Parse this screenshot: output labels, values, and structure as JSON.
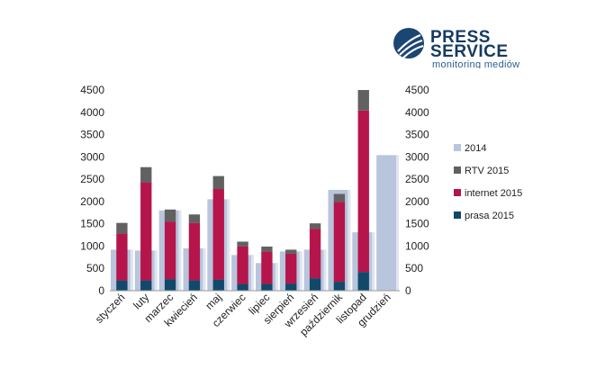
{
  "logo": {
    "line1": "PRESS",
    "line2": "SERVICE",
    "tagline": "monitoring mediów",
    "mark_color": "#1b4573"
  },
  "chart_data": {
    "type": "bar",
    "categories": [
      "styczeń",
      "luty",
      "marzec",
      "kwiecień",
      "maj",
      "czerwiec",
      "lipiec",
      "sierpień",
      "wrzesień",
      "październik",
      "listopad",
      "grudzień"
    ],
    "series": [
      {
        "name": "2014",
        "color": "#b8c5dc",
        "values": [
          920,
          900,
          1800,
          950,
          2050,
          800,
          620,
          880,
          920,
          2260,
          1310,
          3040
        ]
      },
      {
        "name": "RTV 2015",
        "color": "#616161",
        "values": [
          240,
          340,
          270,
          190,
          290,
          110,
          110,
          90,
          120,
          180,
          460,
          null
        ],
        "stacked": true
      },
      {
        "name": "internet 2015",
        "color": "#b5154b",
        "values": [
          1050,
          2200,
          1290,
          1290,
          2030,
          840,
          730,
          670,
          1110,
          1790,
          3620,
          null
        ],
        "stacked": true
      },
      {
        "name": "prasa 2015",
        "color": "#11496a",
        "values": [
          230,
          230,
          260,
          230,
          250,
          150,
          150,
          160,
          280,
          200,
          420,
          null
        ],
        "stacked": true
      }
    ],
    "ylim": [
      0,
      4500
    ],
    "yticks": [
      0,
      500,
      1000,
      1500,
      2000,
      2500,
      3000,
      3500,
      4000,
      4500
    ],
    "secondary_axis": true,
    "grid": false,
    "legend_placement": "right"
  }
}
